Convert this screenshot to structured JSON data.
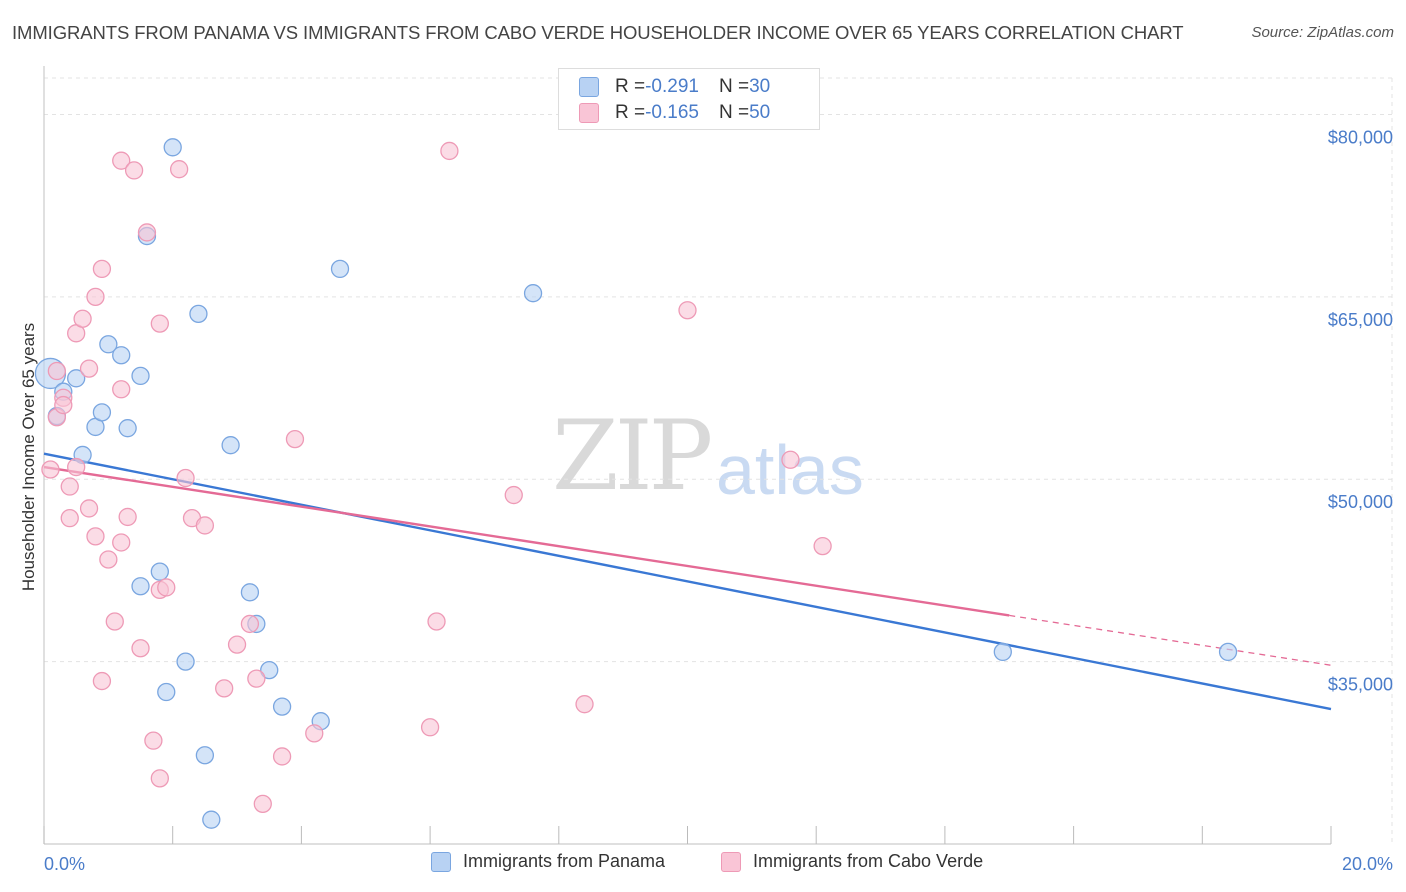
{
  "title": "IMMIGRANTS FROM PANAMA VS IMMIGRANTS FROM CABO VERDE HOUSEHOLDER INCOME OVER 65 YEARS CORRELATION CHART",
  "source": "Source: ZipAtlas.com",
  "watermark": {
    "zip": "ZIP",
    "atlas": "atlas"
  },
  "legend_top": [
    {
      "r_label": "R = ",
      "r_value": "-0.291",
      "n_label": "N = ",
      "n_value": "30"
    },
    {
      "r_label": "R = ",
      "r_value": "-0.165",
      "n_label": "N = ",
      "n_value": "50"
    }
  ],
  "colors": {
    "panama_fill": "#b8d2f3",
    "panama_stroke": "#7aa6e0",
    "panama_line": "#3a78d4",
    "caboverde_fill": "#f9c5d6",
    "caboverde_stroke": "#ee9ab6",
    "caboverde_line": "#e46a95",
    "tick_text": "#4a7cc9",
    "grid": "#e3e3e3"
  },
  "chart_data": {
    "type": "scatter",
    "title": "IMMIGRANTS FROM PANAMA VS IMMIGRANTS FROM CABO VERDE HOUSEHOLDER INCOME OVER 65 YEARS CORRELATION CHART",
    "xlabel": "",
    "ylabel": "Householder Income Over 65 years",
    "xlim": [
      0,
      20
    ],
    "ylim": [
      20000,
      83000
    ],
    "x_tick_labels": [
      "0.0%",
      "20.0%"
    ],
    "y_ticks": [
      35000,
      50000,
      65000,
      80000
    ],
    "y_tick_labels": [
      "$35,000",
      "$50,000",
      "$65,000",
      "$80,000"
    ],
    "grid": true,
    "legend_position": "bottom",
    "series": [
      {
        "name": "Immigrants from Panama",
        "R": -0.291,
        "N": 30,
        "points": [
          [
            0.1,
            58700
          ],
          [
            0.2,
            55200
          ],
          [
            0.3,
            57200
          ],
          [
            0.5,
            58300
          ],
          [
            0.6,
            52000
          ],
          [
            0.8,
            54300
          ],
          [
            0.9,
            55500
          ],
          [
            1.0,
            61100
          ],
          [
            1.2,
            60200
          ],
          [
            1.3,
            54200
          ],
          [
            1.5,
            41200
          ],
          [
            1.5,
            58500
          ],
          [
            1.8,
            42400
          ],
          [
            1.9,
            32500
          ],
          [
            2.0,
            77300
          ],
          [
            2.2,
            35000
          ],
          [
            2.4,
            63600
          ],
          [
            2.5,
            27300
          ],
          [
            2.6,
            22000
          ],
          [
            2.9,
            52800
          ],
          [
            3.2,
            40700
          ],
          [
            3.3,
            38100
          ],
          [
            3.5,
            34300
          ],
          [
            3.7,
            31300
          ],
          [
            4.3,
            30100
          ],
          [
            4.6,
            67300
          ],
          [
            7.6,
            65300
          ],
          [
            1.6,
            70000
          ],
          [
            14.9,
            35800
          ],
          [
            18.4,
            35800
          ]
        ],
        "trend": {
          "x": [
            0.0,
            20.0
          ],
          "y": [
            52100,
            31100
          ]
        }
      },
      {
        "name": "Immigrants from Cabo Verde",
        "R": -0.165,
        "N": 50,
        "points": [
          [
            0.1,
            50800
          ],
          [
            0.2,
            58900
          ],
          [
            0.2,
            55100
          ],
          [
            0.3,
            56700
          ],
          [
            0.3,
            56100
          ],
          [
            0.4,
            49400
          ],
          [
            0.4,
            46800
          ],
          [
            0.5,
            51000
          ],
          [
            0.5,
            62000
          ],
          [
            0.6,
            63200
          ],
          [
            0.7,
            59100
          ],
          [
            0.7,
            47600
          ],
          [
            0.8,
            65000
          ],
          [
            0.8,
            45300
          ],
          [
            0.9,
            67300
          ],
          [
            0.9,
            33400
          ],
          [
            1.0,
            43400
          ],
          [
            1.1,
            38300
          ],
          [
            1.2,
            57400
          ],
          [
            1.2,
            44800
          ],
          [
            1.2,
            76200
          ],
          [
            1.3,
            46900
          ],
          [
            1.4,
            75400
          ],
          [
            1.5,
            36100
          ],
          [
            1.6,
            70300
          ],
          [
            1.7,
            28500
          ],
          [
            1.8,
            25400
          ],
          [
            1.8,
            62800
          ],
          [
            1.8,
            40900
          ],
          [
            1.9,
            41100
          ],
          [
            2.1,
            75500
          ],
          [
            2.2,
            50100
          ],
          [
            2.3,
            46800
          ],
          [
            2.5,
            46200
          ],
          [
            2.8,
            32800
          ],
          [
            3.0,
            36400
          ],
          [
            3.2,
            38100
          ],
          [
            3.3,
            33600
          ],
          [
            3.4,
            23300
          ],
          [
            3.7,
            27200
          ],
          [
            3.9,
            53300
          ],
          [
            4.2,
            29100
          ],
          [
            6.0,
            29600
          ],
          [
            6.1,
            38300
          ],
          [
            6.3,
            77000
          ],
          [
            7.3,
            48700
          ],
          [
            8.4,
            31500
          ],
          [
            10.0,
            63900
          ],
          [
            11.6,
            51600
          ],
          [
            12.1,
            44500
          ]
        ],
        "trend": {
          "x": [
            0.0,
            15.0
          ],
          "y": [
            51000,
            38800
          ]
        },
        "trend_extension": {
          "x": [
            15.0,
            20.0
          ],
          "y": [
            38800,
            34700
          ]
        }
      }
    ]
  }
}
